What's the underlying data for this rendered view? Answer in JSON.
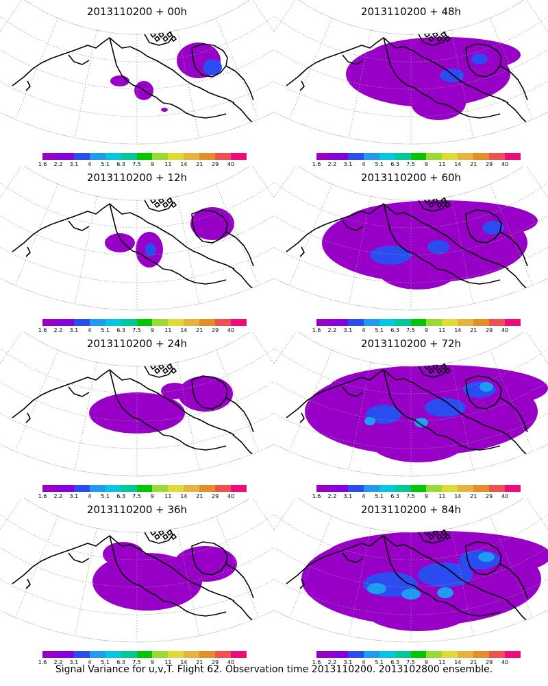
{
  "footer": "Signal Variance for u,v,T. Flight 62. Observation time 2013110200. 2013102800 ensemble.",
  "colorbar": {
    "colors": [
      "#9800c8",
      "#8700e0",
      "#2a4cf0",
      "#1d9cf2",
      "#00c8e0",
      "#00c896",
      "#00c800",
      "#98dc32",
      "#dcdc32",
      "#e6b43c",
      "#e68c28",
      "#f05050",
      "#f00a7a"
    ],
    "labels": [
      "1.6",
      "2.2",
      "3.1",
      "4",
      "5.1",
      "6.3",
      "7.5",
      "9",
      "11",
      "14",
      "21",
      "29",
      "40"
    ]
  },
  "panels": [
    {
      "title": "2013110200 + 00h",
      "level": 0
    },
    {
      "title": "2013110200 + 48h",
      "level": 4
    },
    {
      "title": "2013110200 + 12h",
      "level": 1
    },
    {
      "title": "2013110200 + 60h",
      "level": 5
    },
    {
      "title": "2013110200 + 24h",
      "level": 2
    },
    {
      "title": "2013110200 + 72h",
      "level": 6
    },
    {
      "title": "2013110200 + 36h",
      "level": 3
    },
    {
      "title": "2013110200 + 84h",
      "level": 7
    }
  ]
}
